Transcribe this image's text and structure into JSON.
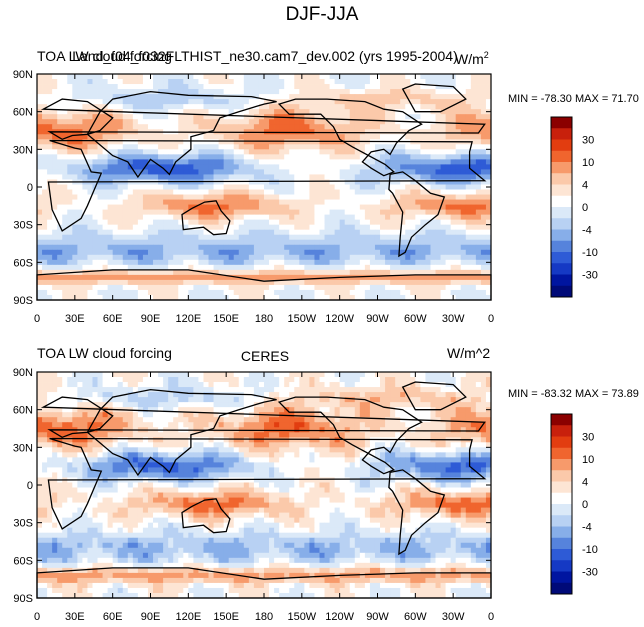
{
  "page_title": "DJF-JJA",
  "chart_data": [
    {
      "type": "heatmap",
      "title_left": "TOA LW cloud forcing",
      "title_center": "Land_f04_f032FLTHIST_ne30.cam7_dev.002 (yrs 1995-2004)",
      "units": "W/m",
      "units_sup": "2",
      "stats": "MIN = -78.30 MAX =  71.70",
      "x_ticks": [
        "0",
        "30E",
        "60E",
        "90E",
        "120E",
        "150E",
        "180",
        "150W",
        "120W",
        "90W",
        "60W",
        "30W",
        "0"
      ],
      "y_ticks": [
        "90N",
        "60N",
        "30N",
        "0",
        "30S",
        "60S",
        "90S"
      ],
      "colorbar_levels": [
        "30",
        "10",
        "4",
        "0",
        "-4",
        "-10",
        "-30"
      ],
      "xlim": [
        0,
        360
      ],
      "ylim": [
        -90,
        90
      ],
      "vlim": [
        -80,
        75
      ]
    },
    {
      "type": "heatmap",
      "title_left": "TOA LW cloud forcing",
      "title_center": "CERES",
      "units": "W/m^2",
      "units_sup": "",
      "stats": "MIN = -83.32 MAX =  73.89",
      "x_ticks": [
        "0",
        "30E",
        "60E",
        "90E",
        "120E",
        "150E",
        "180",
        "150W",
        "120W",
        "90W",
        "60W",
        "30W",
        "0"
      ],
      "y_ticks": [
        "90N",
        "60N",
        "30N",
        "0",
        "30S",
        "60S",
        "90S"
      ],
      "colorbar_levels": [
        "30",
        "10",
        "4",
        "0",
        "-4",
        "-10",
        "-30"
      ],
      "xlim": [
        0,
        360
      ],
      "ylim": [
        -90,
        90
      ],
      "vlim": [
        -84,
        74
      ]
    }
  ],
  "colors": {
    "palette": [
      "#8b0000",
      "#c8200c",
      "#e23d10",
      "#f0652e",
      "#f79a6b",
      "#fbc9aa",
      "#fde5d4",
      "#ffffff",
      "#dbe9f8",
      "#b8d1f3",
      "#87aee9",
      "#5683dc",
      "#2e5bd6",
      "#1539c4",
      "#0015a0",
      "#000a78"
    ],
    "land": "#000000"
  }
}
